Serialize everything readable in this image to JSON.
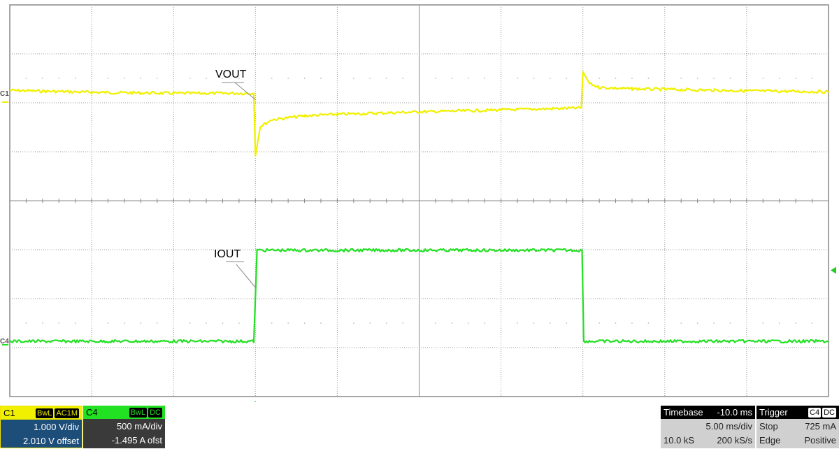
{
  "chart_data": {
    "type": "line",
    "x_unit": "ms",
    "xlim": [
      -15,
      35
    ],
    "x_divisions": 10,
    "y_divisions": 8,
    "grid": true,
    "annotations": [
      {
        "text": "VOUT",
        "series": "VOUT"
      },
      {
        "text": "IOUT",
        "series": "IOUT"
      }
    ],
    "series": [
      {
        "name": "VOUT",
        "channel": "C1",
        "color": "#f0f000",
        "unit": "V",
        "x": [
          -15,
          -10,
          -5,
          -0.1,
          0,
          0.3,
          1,
          3,
          5,
          10,
          15,
          19.9,
          20,
          20.4,
          21,
          23,
          25,
          30,
          35
        ],
        "y": [
          0.24,
          0.2,
          0.18,
          0.18,
          -1.1,
          -0.5,
          -0.36,
          -0.28,
          -0.25,
          -0.2,
          -0.16,
          -0.12,
          0.62,
          0.38,
          0.3,
          0.27,
          0.26,
          0.23,
          0.21
        ]
      },
      {
        "name": "IOUT",
        "channel": "C4",
        "color": "#22e022",
        "unit": "A",
        "x": [
          -15,
          -0.1,
          0,
          0.1,
          19.95,
          20.05,
          35
        ],
        "y": [
          0.0,
          0.0,
          0.45,
          0.93,
          0.93,
          0.0,
          0.0
        ]
      }
    ]
  },
  "channels": {
    "c1": {
      "label": "C1",
      "tags": [
        "BwL",
        "AC1M"
      ],
      "scale": "1.000 V/div",
      "offset": "2.010 V offset",
      "marker": "C1",
      "color": "#f0f000"
    },
    "c4": {
      "label": "C4",
      "tags": [
        "BwL",
        "DC"
      ],
      "scale": "500 mA/div",
      "offset": "-1.495 A ofst",
      "marker": "C4",
      "color": "#22e022"
    }
  },
  "timebase": {
    "title": "Timebase",
    "delay": "-10.0 ms",
    "scale": "5.00 ms/div",
    "samples": "10.0 kS",
    "rate": "200 kS/s"
  },
  "trigger": {
    "title": "Trigger",
    "source": "C4",
    "coupling": "DC",
    "mode": "Stop",
    "level": "725 mA",
    "type": "Edge",
    "slope": "Positive",
    "level_value_a": 0.725
  }
}
